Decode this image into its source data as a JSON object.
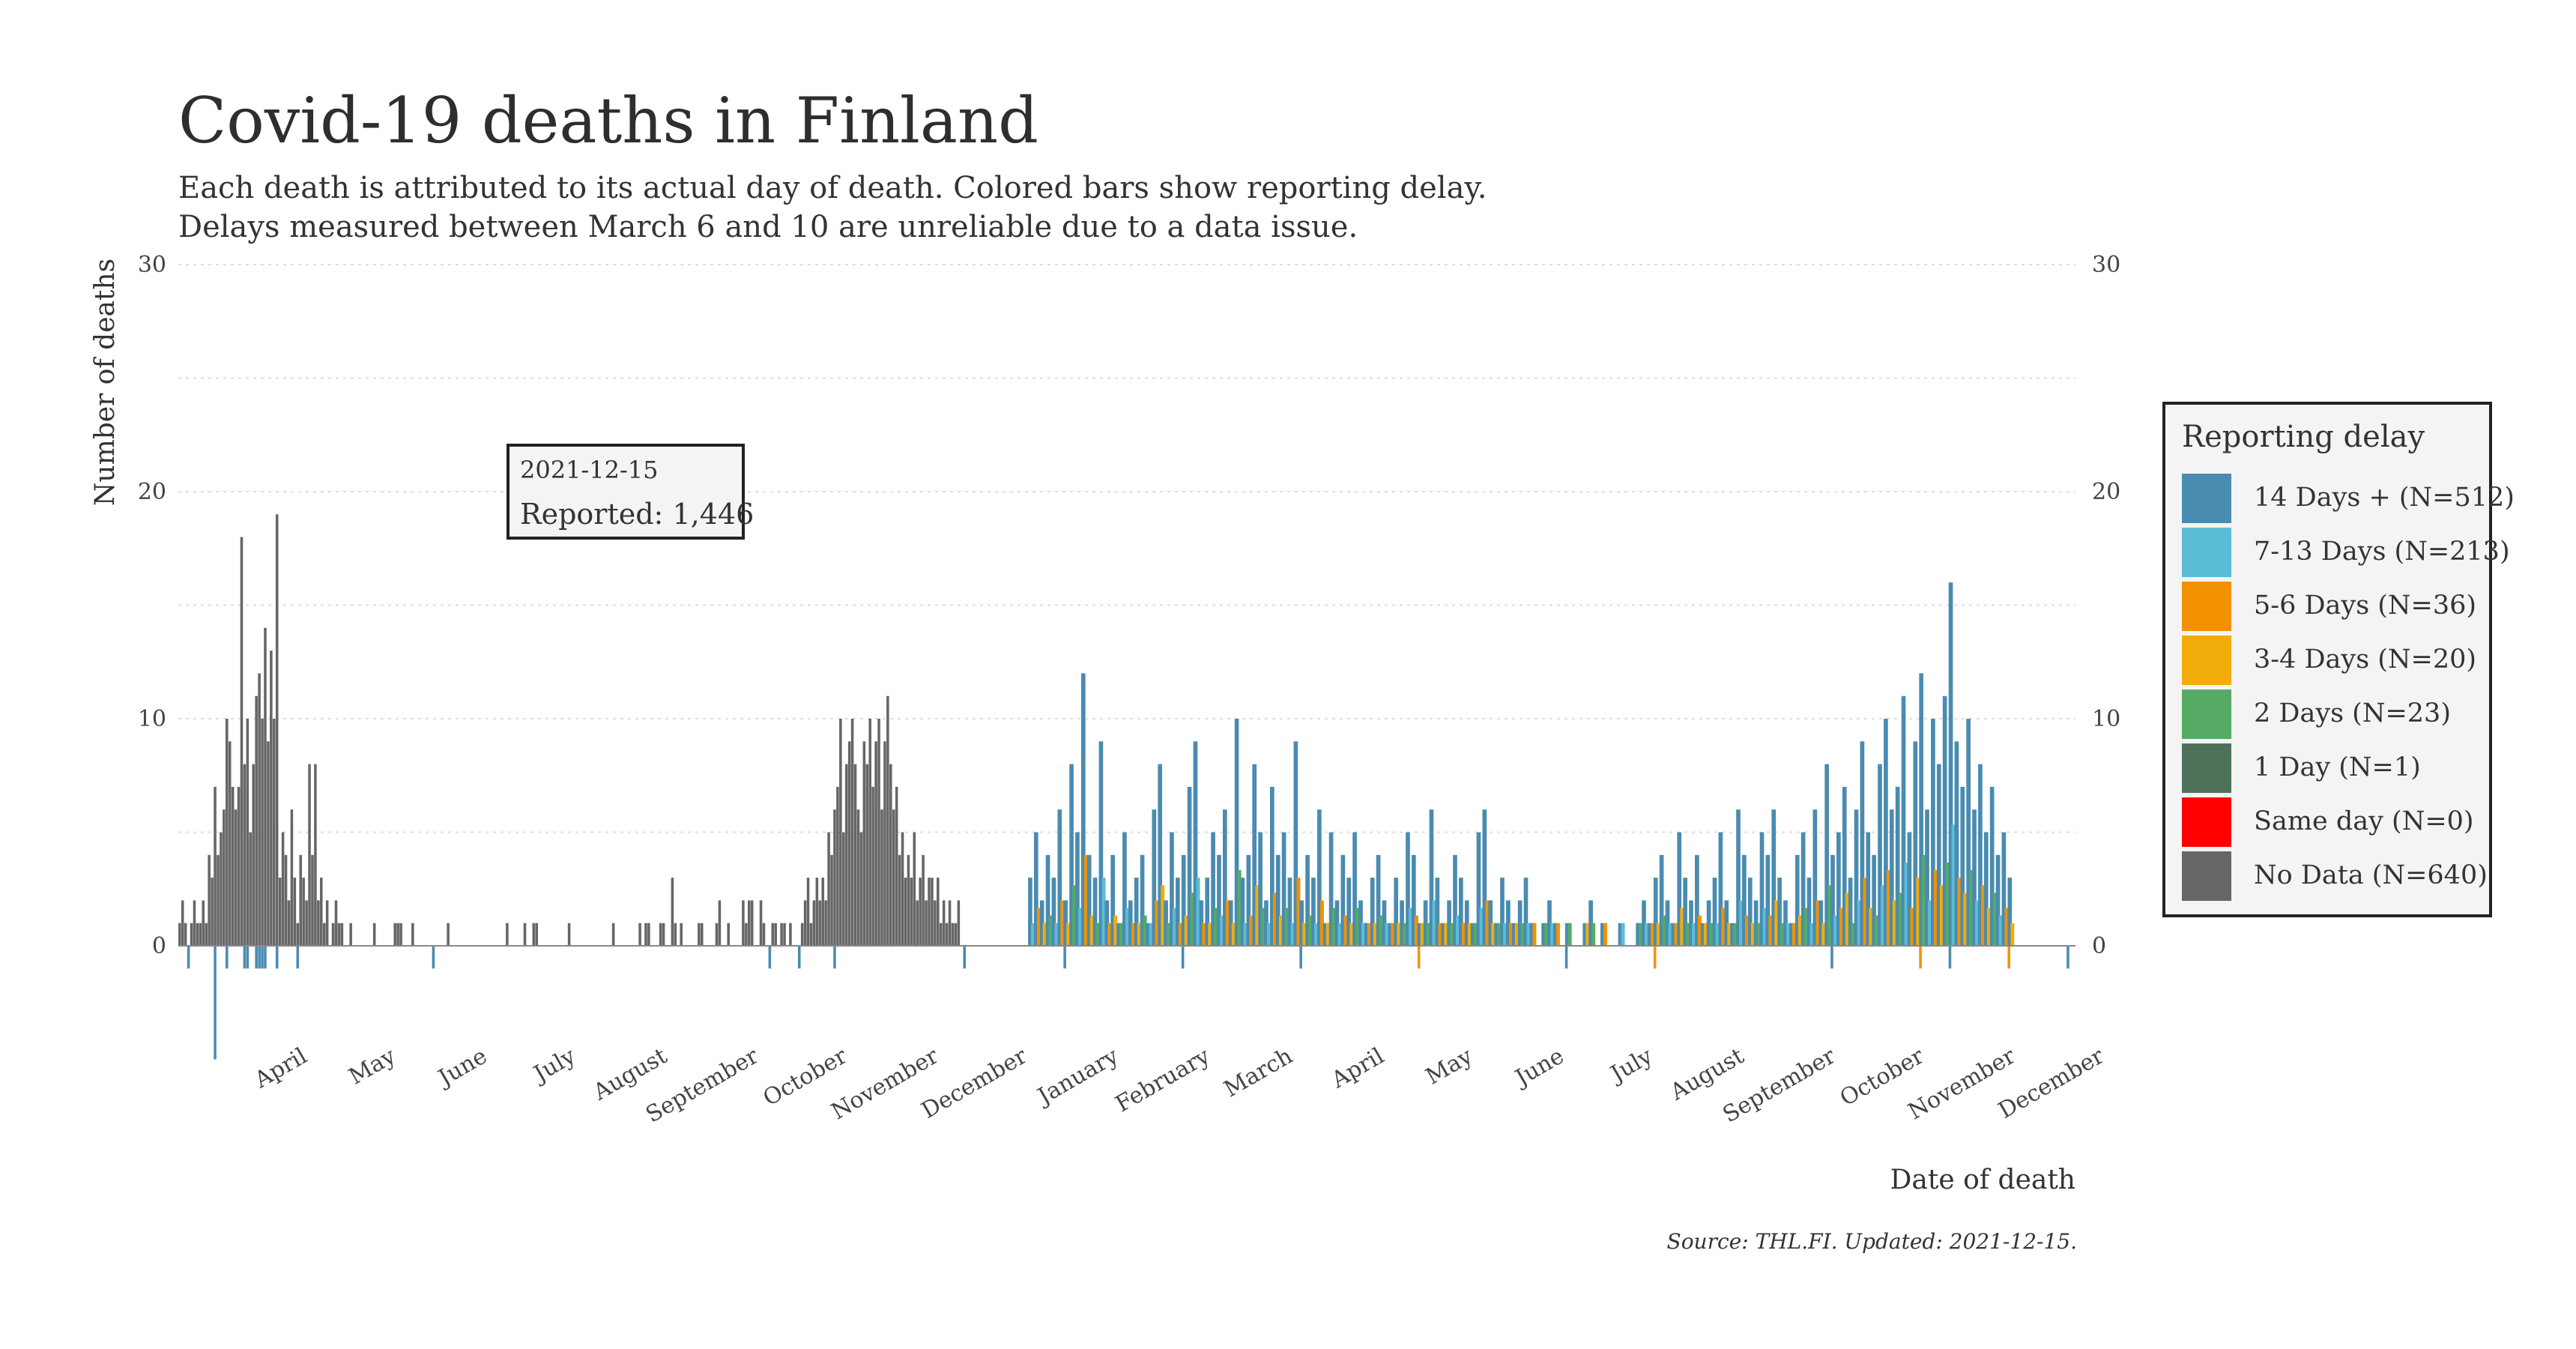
{
  "title": "Covid-19 deaths in Finland",
  "subtitle_line1": "Each death is attributed to its actual day of death. Colored bars show reporting delay.",
  "subtitle_line2": "Delays measured between March 6 and 10 are unreliable due to a data issue.",
  "source": "Source: THL.FI. Updated: 2021-12-15.",
  "annotation": {
    "date": "2021-12-15",
    "reported_label": "Reported:",
    "reported_value": "1,446"
  },
  "legend": {
    "title": "Reporting delay",
    "items": [
      {
        "label": "14 Days + (N=512)",
        "color": "#4a8bb0"
      },
      {
        "label": "7-13 Days (N=213)",
        "color": "#5bbcd8"
      },
      {
        "label": "5-6 Days (N=36)",
        "color": "#f39200"
      },
      {
        "label": "3-4 Days (N=20)",
        "color": "#f3ad0a"
      },
      {
        "label": "2 Days (N=23)",
        "color": "#56ab64"
      },
      {
        "label": "1 Day (N=1)",
        "color": "#4e7259"
      },
      {
        "label": "Same day (N=0)",
        "color": "#ff0000"
      },
      {
        "label": "No Data (N=640)",
        "color": "#666666"
      }
    ]
  },
  "chart_data": {
    "type": "bar",
    "x_start": "2020-03-12",
    "x_end": "2021-12-15",
    "xlabel": "Date of death",
    "ylabel": "Number of deaths",
    "ylim": [
      -5,
      30
    ],
    "y_ticks": [
      0,
      10,
      20,
      30
    ],
    "x_tick_labels": [
      "April",
      "May",
      "June",
      "July",
      "August",
      "September",
      "October",
      "November",
      "December",
      "January",
      "February",
      "March",
      "April",
      "May",
      "June",
      "July",
      "August",
      "September",
      "October",
      "November",
      "December"
    ],
    "grid": "horizontal dotted",
    "legend_position": "right",
    "series": [
      {
        "name": "No Data",
        "color": "#666666",
        "daily_values": [
          1,
          2,
          1,
          0,
          1,
          2,
          1,
          1,
          2,
          1,
          4,
          3,
          7,
          4,
          5,
          6,
          10,
          9,
          7,
          6,
          7,
          18,
          8,
          10,
          5,
          8,
          11,
          12,
          10,
          14,
          9,
          13,
          10,
          19,
          3,
          5,
          4,
          2,
          6,
          3,
          1,
          4,
          3,
          2,
          8,
          4,
          8,
          2,
          3,
          1,
          2,
          0,
          1,
          2,
          1,
          1,
          0,
          0,
          1,
          0,
          0,
          0,
          0,
          0,
          0,
          0,
          1,
          0,
          0,
          0,
          0,
          0,
          0,
          1,
          1,
          1,
          0,
          0,
          0,
          1,
          0,
          0,
          0,
          0,
          0,
          0,
          0,
          0,
          0,
          0,
          0,
          1,
          0,
          0,
          0,
          0,
          0,
          0,
          0,
          0,
          0,
          0,
          0,
          0,
          0,
          0,
          0,
          0,
          0,
          0,
          0,
          1,
          0,
          0,
          0,
          0,
          0,
          1,
          0,
          0,
          1,
          1,
          0,
          0,
          0,
          0,
          0,
          0,
          0,
          0,
          0,
          0,
          1,
          0,
          0,
          0,
          0,
          0,
          0,
          0,
          0,
          0,
          0,
          0,
          0,
          0,
          0,
          1,
          0,
          0,
          0,
          0,
          0,
          0,
          0,
          0,
          1,
          0,
          1,
          1,
          0,
          0,
          0,
          1,
          1,
          0,
          0,
          3,
          1,
          0,
          1,
          0,
          0,
          0,
          0,
          0,
          1,
          1,
          0,
          0,
          0,
          0,
          1,
          2,
          0,
          0,
          1,
          0,
          0,
          0,
          0,
          2,
          1,
          2,
          2,
          0,
          0,
          2,
          1,
          0,
          0,
          1,
          1,
          0,
          1,
          1,
          0,
          1,
          0,
          0,
          0,
          1,
          2,
          3,
          1,
          2,
          3,
          2,
          3,
          2,
          5,
          4,
          6,
          7,
          10,
          5,
          8,
          9,
          10,
          8,
          6,
          5,
          9,
          8,
          10,
          7,
          9,
          10,
          6,
          9,
          11,
          8,
          6,
          7,
          4,
          5,
          3,
          4,
          3,
          5,
          2,
          3,
          4,
          2,
          3,
          3,
          2,
          3,
          1,
          2,
          1,
          2,
          1,
          1,
          2
        ]
      },
      {
        "name": "14 Days +",
        "color": "#4a8bb0",
        "daily_values": [
          3,
          5,
          2,
          4,
          3,
          6,
          2,
          8,
          5,
          12,
          4,
          3,
          9,
          2,
          4,
          1,
          5,
          2,
          3,
          4,
          1,
          6,
          8,
          2,
          5,
          3,
          4,
          7,
          9,
          2,
          3,
          5,
          4,
          6,
          2,
          10,
          3,
          4,
          8,
          5,
          2,
          7,
          4,
          5,
          3,
          9,
          2,
          4,
          3,
          6,
          1,
          5,
          2,
          4,
          3,
          5,
          2,
          1,
          3,
          4,
          2,
          1,
          3,
          2,
          5,
          4,
          1,
          2,
          6,
          3,
          1,
          2,
          4,
          3,
          2,
          1,
          5,
          6,
          2,
          1,
          3,
          2,
          1,
          2,
          3,
          1,
          0,
          1,
          2,
          1,
          0,
          1,
          0,
          0,
          1,
          2,
          0,
          1,
          0,
          0,
          1,
          0,
          0,
          1,
          2,
          1,
          3,
          4,
          2,
          1,
          5,
          3,
          2,
          4,
          1,
          2,
          3,
          5,
          2,
          1,
          6,
          4,
          3,
          2,
          5,
          4,
          6,
          3,
          2,
          1,
          4,
          5,
          3,
          6,
          2,
          8,
          4,
          5,
          7,
          3,
          6,
          9,
          5,
          4,
          8,
          10,
          6,
          7,
          11,
          5,
          9,
          12,
          6,
          10,
          8,
          11,
          16,
          9,
          7,
          10,
          6,
          8,
          5,
          7,
          4,
          5,
          3
        ]
      }
    ],
    "delay_colors_note_free": true
  }
}
